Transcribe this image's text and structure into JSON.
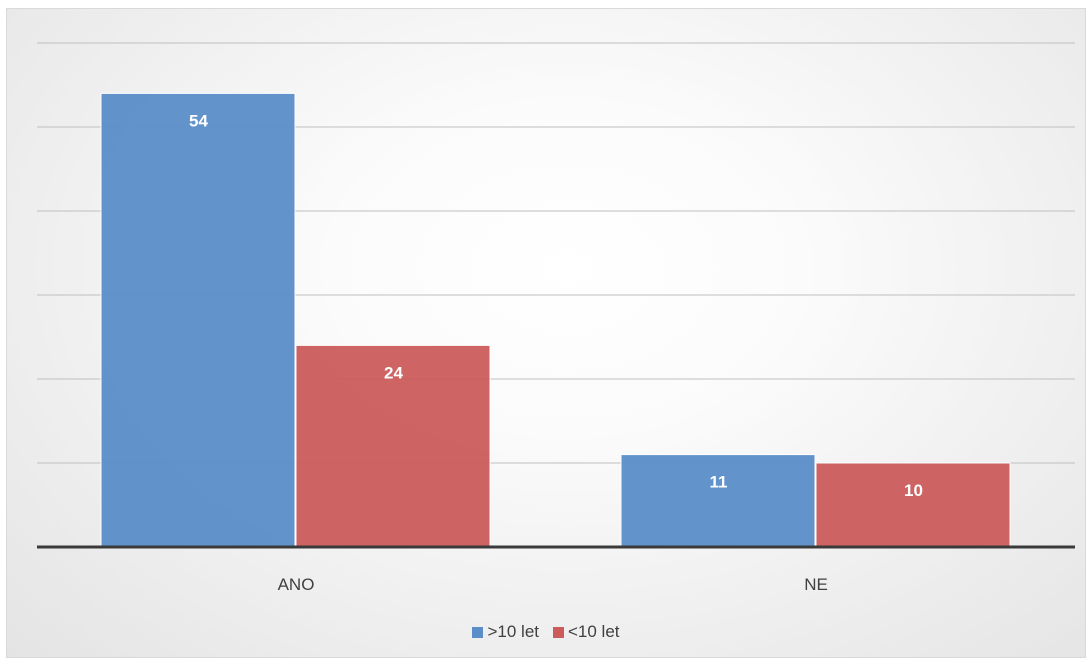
{
  "colors": {
    "series_1": "#5b8ec9",
    "series_2": "#cc5c5c",
    "gridline": "#bfbfbf",
    "axis": "#3a3a3a"
  },
  "chart_data": {
    "type": "bar",
    "categories": [
      "ANO",
      "NE"
    ],
    "series": [
      {
        "name": ">10 let",
        "values": [
          54,
          11
        ]
      },
      {
        "name": "<10 let",
        "values": [
          24,
          10
        ]
      }
    ],
    "title": "",
    "xlabel": "",
    "ylabel": "",
    "ylim": [
      0,
      60
    ],
    "grid": true,
    "legend": "bottom",
    "data_labels": true
  }
}
